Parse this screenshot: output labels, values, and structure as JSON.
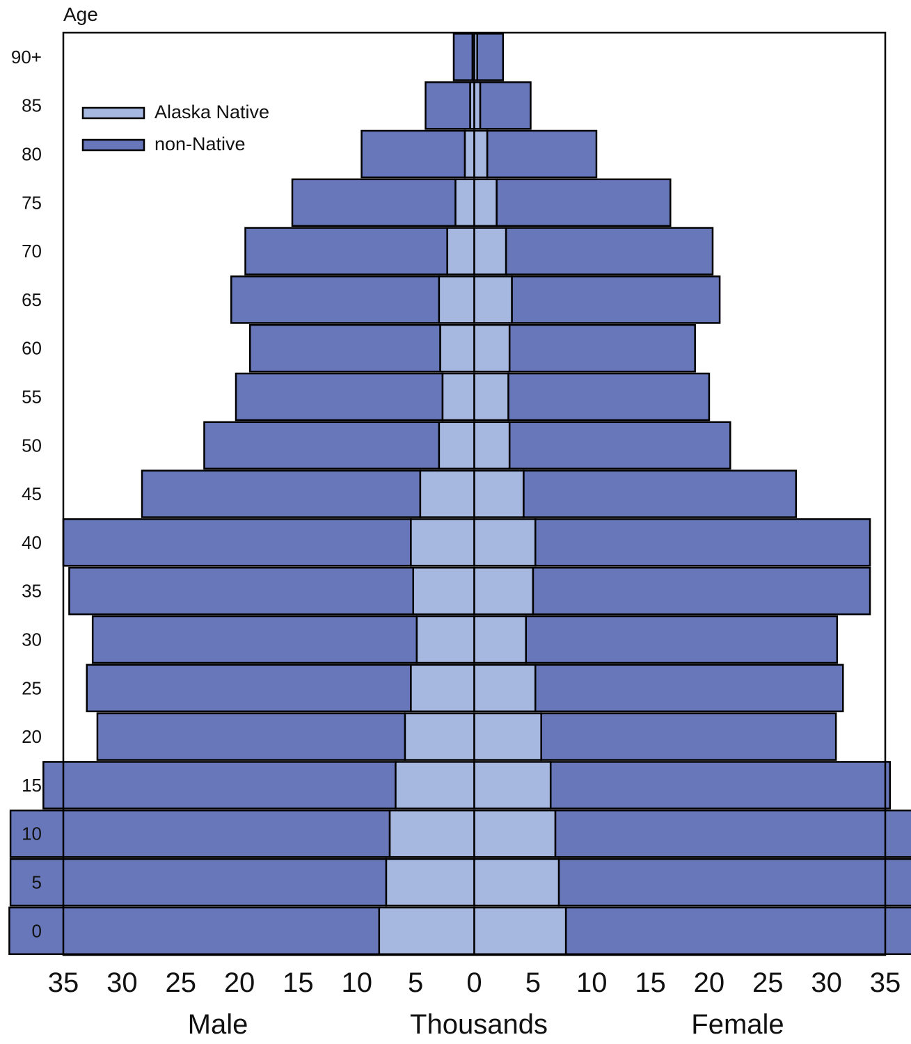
{
  "chart_data": {
    "type": "bar",
    "orientation": "horizontal-pyramid",
    "title": "",
    "ylabel": "Age",
    "xlabel": "Thousands",
    "left_label": "Male",
    "right_label": "Female",
    "xlim": [
      -35,
      35
    ],
    "x_ticks": [
      "35",
      "30",
      "25",
      "20",
      "15",
      "10",
      "5",
      "0",
      "5",
      "10",
      "15",
      "20",
      "25",
      "30",
      "35"
    ],
    "y_ticks": [
      "90+",
      "85",
      "80",
      "75",
      "70",
      "65",
      "60",
      "55",
      "50",
      "45",
      "40",
      "35",
      "30",
      "25",
      "20",
      "15",
      "10",
      "5",
      "0"
    ],
    "categories": [
      "0",
      "5",
      "10",
      "15",
      "20",
      "25",
      "30",
      "35",
      "40",
      "45",
      "50",
      "55",
      "60",
      "65",
      "70",
      "75",
      "80",
      "85",
      "90+"
    ],
    "legend_position": "top-left",
    "series": [
      {
        "name": "Alaska Native",
        "color": "#a7b8e0",
        "male": [
          8.1,
          7.5,
          7.2,
          6.7,
          5.9,
          5.4,
          4.9,
          5.2,
          5.4,
          4.6,
          3.0,
          2.7,
          2.9,
          3.0,
          2.3,
          1.6,
          0.8,
          0.35,
          0.15
        ],
        "female": [
          7.8,
          7.2,
          6.9,
          6.5,
          5.7,
          5.2,
          4.4,
          5.0,
          5.2,
          4.2,
          3.0,
          2.9,
          3.0,
          3.2,
          2.7,
          1.9,
          1.1,
          0.5,
          0.25
        ]
      },
      {
        "name": "non-Native",
        "color": "#6877b9",
        "male": [
          31.5,
          32.0,
          32.3,
          30.0,
          26.2,
          27.6,
          27.6,
          29.3,
          29.6,
          23.7,
          20.0,
          17.6,
          16.2,
          17.7,
          17.2,
          13.9,
          8.8,
          3.8,
          1.6
        ],
        "female": [
          30.2,
          30.8,
          31.1,
          28.9,
          25.1,
          26.2,
          26.5,
          28.7,
          28.5,
          23.2,
          18.8,
          17.1,
          15.8,
          17.7,
          17.6,
          14.8,
          9.3,
          4.3,
          2.2
        ]
      }
    ]
  }
}
